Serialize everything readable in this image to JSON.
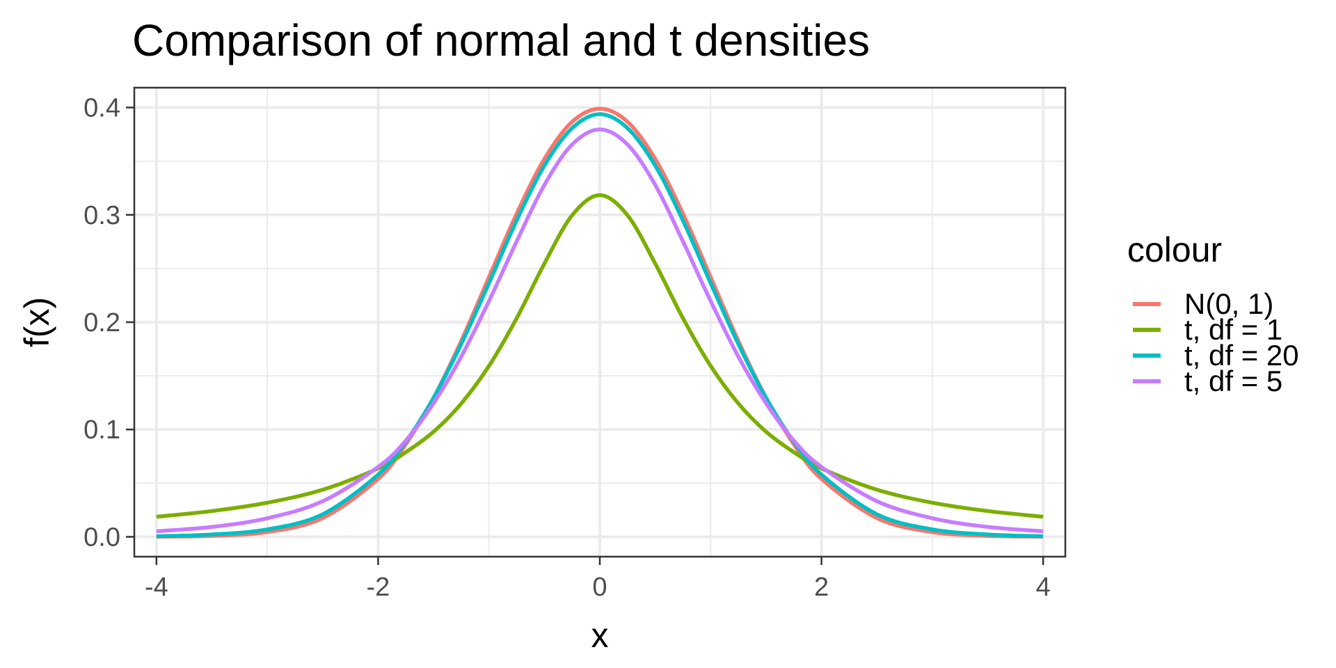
{
  "chart_data": {
    "type": "line",
    "title": "Comparison of normal and t densities",
    "xlabel": "x",
    "ylabel": "f(x)",
    "xlim": [
      -4.2,
      4.2
    ],
    "ylim": [
      -0.0185,
      0.4185
    ],
    "x_ticks": [
      -4,
      -2,
      0,
      2,
      4
    ],
    "x_tick_labels": [
      "-4",
      "-2",
      "0",
      "2",
      "4"
    ],
    "y_ticks": [
      0.0,
      0.1,
      0.2,
      0.3,
      0.4
    ],
    "y_tick_labels": [
      "0.0",
      "0.1",
      "0.2",
      "0.3",
      "0.4"
    ],
    "grid": true,
    "legend": {
      "title": "colour",
      "position": "right"
    },
    "x": [
      -4,
      -3.5,
      -3,
      -2.5,
      -2,
      -1.75,
      -1.5,
      -1.25,
      -1,
      -0.75,
      -0.5,
      -0.25,
      0,
      0.25,
      0.5,
      0.75,
      1,
      1.25,
      1.5,
      1.75,
      2,
      2.5,
      3,
      3.5,
      4
    ],
    "series": [
      {
        "name": "N(0, 1)",
        "color": "#F8766D",
        "values": [
          0.0001,
          0.0009,
          0.0044,
          0.0175,
          0.054,
          0.0863,
          0.1295,
          0.1826,
          0.242,
          0.3011,
          0.3521,
          0.3867,
          0.3989,
          0.3867,
          0.3521,
          0.3011,
          0.242,
          0.1826,
          0.1295,
          0.0863,
          0.054,
          0.0175,
          0.0044,
          0.0009,
          0.0001
        ]
      },
      {
        "name": "t, df = 1",
        "color": "#7CAE00",
        "values": [
          0.0187,
          0.024,
          0.0318,
          0.0439,
          0.0637,
          0.0789,
          0.0979,
          0.1242,
          0.1592,
          0.2037,
          0.2546,
          0.2996,
          0.3183,
          0.2996,
          0.2546,
          0.2037,
          0.1592,
          0.1242,
          0.0979,
          0.0789,
          0.0637,
          0.0439,
          0.0318,
          0.024,
          0.0187
        ]
      },
      {
        "name": "t, df = 20",
        "color": "#00BFC4",
        "values": [
          0.0005,
          0.0022,
          0.0069,
          0.021,
          0.058,
          0.0887,
          0.1295,
          0.1796,
          0.2364,
          0.2948,
          0.3459,
          0.3808,
          0.3939,
          0.3808,
          0.3459,
          0.2948,
          0.2364,
          0.1796,
          0.1295,
          0.0887,
          0.058,
          0.021,
          0.0069,
          0.0022,
          0.0005
        ]
      },
      {
        "name": "t, df = 5",
        "color": "#C77CFF",
        "values": [
          0.0051,
          0.0092,
          0.0173,
          0.0332,
          0.0651,
          0.0897,
          0.1245,
          0.1679,
          0.2197,
          0.2753,
          0.3279,
          0.3655,
          0.3796,
          0.3655,
          0.3279,
          0.2753,
          0.2197,
          0.1679,
          0.1245,
          0.0897,
          0.0651,
          0.0332,
          0.0173,
          0.0092,
          0.0051
        ]
      }
    ]
  }
}
